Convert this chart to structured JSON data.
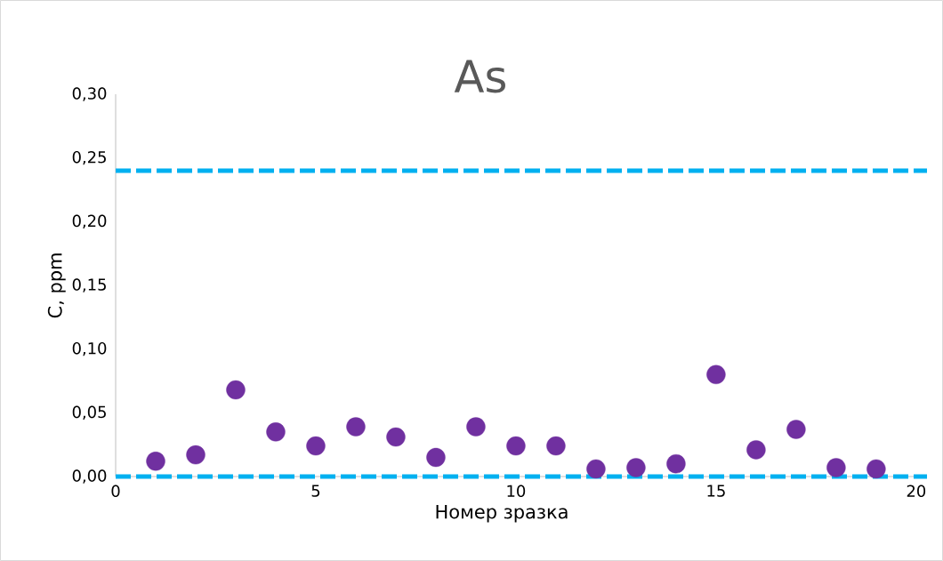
{
  "chart_data": {
    "type": "scatter",
    "title": "As",
    "xlabel": "Номер зразка",
    "ylabel": "C, ppm",
    "x": [
      1,
      2,
      3,
      4,
      5,
      6,
      7,
      8,
      9,
      10,
      11,
      12,
      13,
      14,
      15,
      16,
      17,
      18,
      19
    ],
    "series": [
      {
        "color": "#7030a0",
        "values": [
          0.012,
          0.017,
          0.068,
          0.035,
          0.024,
          0.039,
          0.031,
          0.015,
          0.039,
          0.024,
          0.024,
          0.006,
          0.007,
          0.01,
          0.08,
          0.021,
          0.037,
          0.007,
          0.006
        ]
      }
    ],
    "ref_lines": [
      {
        "axis": "y",
        "value": 0.24,
        "color": "#00b0f0",
        "line_style": "dashed"
      },
      {
        "axis": "y",
        "value": 0,
        "color": "#00b0f0",
        "line_style": "dashed"
      }
    ],
    "xlim": [
      0,
      20.27
    ],
    "ylim": [
      0,
      0.3
    ],
    "xticks": [
      0,
      5,
      10,
      15,
      20
    ],
    "yticks": [
      {
        "value": 0,
        "label": "0,00"
      },
      {
        "value": 0.05,
        "label": "0,05"
      },
      {
        "value": 0.1,
        "label": "0,10"
      },
      {
        "value": 0.15,
        "label": "0,15"
      },
      {
        "value": 0.2,
        "label": "0,20"
      },
      {
        "value": 0.25,
        "label": "0,25"
      },
      {
        "value": 0.3,
        "label": "0,30"
      }
    ],
    "marker": "circle",
    "grid": false,
    "legend": false
  }
}
